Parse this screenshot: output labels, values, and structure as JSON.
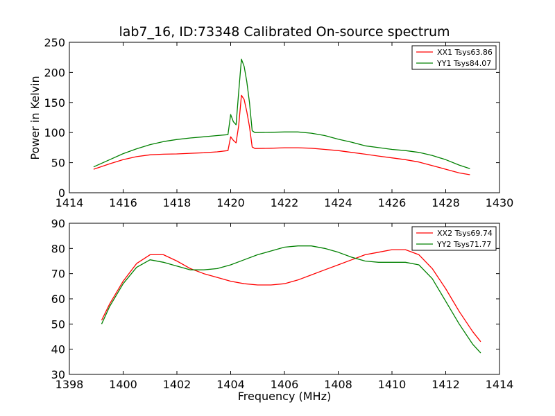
{
  "figure": {
    "title": "lab7_16, ID:73348 Calibrated On-source spectrum",
    "xlabel": "Frequency (MHz)",
    "ylabel": "Power in Kelvin"
  },
  "colors": {
    "series_1": "#ff0000",
    "series_2": "#008000",
    "frame": "#000000"
  },
  "chart_data": [
    {
      "type": "line",
      "title": "lab7_16, ID:73348 Calibrated On-source spectrum",
      "xlabel": "",
      "ylabel": "Power in Kelvin",
      "xlim": [
        1414,
        1430
      ],
      "ylim": [
        0,
        250
      ],
      "xticks": [
        1414,
        1416,
        1418,
        1420,
        1422,
        1424,
        1426,
        1428,
        1430
      ],
      "yticks": [
        0,
        50,
        100,
        150,
        200,
        250
      ],
      "grid": false,
      "legend_position": "top-right",
      "series": [
        {
          "name": "XX1 Tsys63.86",
          "color": "#ff0000",
          "x": [
            1414.9,
            1415.5,
            1416.0,
            1416.5,
            1417.0,
            1417.5,
            1418.0,
            1418.5,
            1419.0,
            1419.5,
            1419.9,
            1420.0,
            1420.1,
            1420.2,
            1420.3,
            1420.4,
            1420.5,
            1420.6,
            1420.7,
            1420.8,
            1420.9,
            1421.5,
            1422.0,
            1422.5,
            1423.0,
            1423.5,
            1424.0,
            1424.5,
            1425.0,
            1425.5,
            1426.0,
            1426.5,
            1427.0,
            1427.5,
            1428.0,
            1428.5,
            1428.9
          ],
          "values": [
            39,
            48,
            55,
            60,
            63,
            64,
            64.5,
            65.5,
            66.5,
            68,
            70,
            93,
            87,
            83,
            112,
            162,
            155,
            135,
            110,
            76,
            73.5,
            74,
            74.8,
            74.8,
            74,
            72,
            70,
            67,
            64,
            61,
            58,
            55,
            51,
            45,
            39,
            33,
            30
          ]
        },
        {
          "name": "YY1 Tsys84.07",
          "color": "#008000",
          "x": [
            1414.9,
            1415.5,
            1416.0,
            1416.5,
            1417.0,
            1417.5,
            1418.0,
            1418.5,
            1419.0,
            1419.5,
            1419.9,
            1420.0,
            1420.1,
            1420.2,
            1420.3,
            1420.4,
            1420.5,
            1420.6,
            1420.7,
            1420.8,
            1420.9,
            1421.5,
            1422.0,
            1422.5,
            1423.0,
            1423.5,
            1424.0,
            1424.5,
            1425.0,
            1425.5,
            1426.0,
            1426.5,
            1427.0,
            1427.5,
            1428.0,
            1428.5,
            1428.9
          ],
          "values": [
            43,
            55,
            65,
            73,
            80,
            85,
            88.5,
            91,
            93,
            95,
            96.5,
            130,
            118,
            113,
            168,
            222,
            210,
            185,
            150,
            103,
            100,
            100.5,
            101,
            101,
            99,
            95,
            89,
            84,
            78,
            75,
            72,
            70,
            67,
            62,
            55,
            46,
            40
          ]
        }
      ]
    },
    {
      "type": "line",
      "title": "",
      "xlabel": "Frequency (MHz)",
      "ylabel": "",
      "xlim": [
        1398,
        1414
      ],
      "ylim": [
        30,
        90
      ],
      "xticks": [
        1398,
        1400,
        1402,
        1404,
        1406,
        1408,
        1410,
        1412,
        1414
      ],
      "yticks": [
        30,
        40,
        50,
        60,
        70,
        80,
        90
      ],
      "grid": false,
      "legend_position": "top-right",
      "series": [
        {
          "name": "XX2 Tsys69.74",
          "color": "#ff0000",
          "x": [
            1399.2,
            1399.5,
            1400.0,
            1400.5,
            1401.0,
            1401.5,
            1402.0,
            1402.5,
            1403.0,
            1403.5,
            1404.0,
            1404.5,
            1405.0,
            1405.5,
            1406.0,
            1406.5,
            1407.0,
            1407.5,
            1408.0,
            1408.5,
            1409.0,
            1409.5,
            1410.0,
            1410.5,
            1411.0,
            1411.5,
            1412.0,
            1412.5,
            1413.0,
            1413.3
          ],
          "values": [
            51.5,
            58,
            67,
            74,
            77.5,
            77.5,
            75,
            72,
            70,
            68.5,
            67,
            66,
            65.5,
            65.5,
            66,
            67.5,
            69.5,
            71.5,
            73.5,
            75.5,
            77.5,
            78.5,
            79.5,
            79.5,
            77.5,
            72,
            64,
            55,
            47,
            43
          ]
        },
        {
          "name": "YY2 Tsys71.77",
          "color": "#008000",
          "x": [
            1399.2,
            1399.5,
            1400.0,
            1400.5,
            1401.0,
            1401.5,
            1402.0,
            1402.5,
            1403.0,
            1403.5,
            1404.0,
            1404.5,
            1405.0,
            1405.5,
            1406.0,
            1406.5,
            1407.0,
            1407.5,
            1408.0,
            1408.5,
            1409.0,
            1409.5,
            1410.0,
            1410.5,
            1411.0,
            1411.5,
            1412.0,
            1412.5,
            1413.0,
            1413.3
          ],
          "values": [
            50,
            57,
            66,
            72.5,
            75.5,
            74.5,
            73,
            71.5,
            71.5,
            72,
            73.5,
            75.5,
            77.5,
            79,
            80.5,
            81,
            81,
            80,
            78.5,
            76.5,
            75,
            74.5,
            74.5,
            74.5,
            73.5,
            68,
            59,
            50,
            42,
            38.5
          ]
        }
      ]
    }
  ]
}
